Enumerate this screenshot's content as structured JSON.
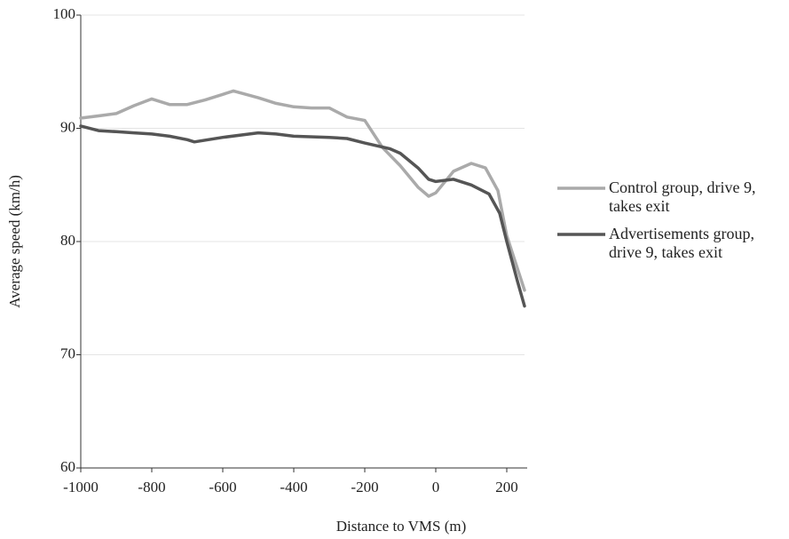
{
  "chart_data": {
    "type": "line",
    "x_label": "Distance to VMS (m)",
    "y_label": "Average speed (km/h)",
    "xlim": [
      -1000,
      250
    ],
    "xticks": [
      -1000,
      -800,
      -600,
      -400,
      -200,
      0,
      200
    ],
    "ylim": [
      60,
      100
    ],
    "yticks": [
      60,
      70,
      80,
      90,
      100
    ],
    "grid": true,
    "legend": "right",
    "series": [
      {
        "name": "Control group, drive 9, takes exit",
        "color": "#aaaaaa",
        "x": [
          -1000,
          -950,
          -900,
          -850,
          -800,
          -750,
          -700,
          -650,
          -600,
          -570,
          -500,
          -450,
          -400,
          -350,
          -300,
          -250,
          -200,
          -150,
          -100,
          -50,
          -20,
          0,
          50,
          100,
          140,
          175,
          200,
          250
        ],
        "values": [
          90.9,
          91.1,
          91.3,
          92.0,
          92.6,
          92.1,
          92.1,
          92.5,
          93.0,
          93.3,
          92.7,
          92.2,
          91.9,
          91.8,
          91.8,
          91.0,
          90.7,
          88.3,
          86.7,
          84.8,
          84.0,
          84.3,
          86.2,
          86.9,
          86.5,
          84.5,
          80.5,
          75.7
        ]
      },
      {
        "name": "Advertisements group, drive 9, takes exit",
        "color": "#555555",
        "x": [
          -1000,
          -950,
          -900,
          -850,
          -800,
          -750,
          -700,
          -680,
          -600,
          -500,
          -450,
          -400,
          -300,
          -250,
          -200,
          -130,
          -100,
          -50,
          -20,
          0,
          50,
          100,
          150,
          180,
          200,
          230,
          250
        ],
        "values": [
          90.2,
          89.8,
          89.7,
          89.6,
          89.5,
          89.3,
          89.0,
          88.8,
          89.2,
          89.6,
          89.5,
          89.3,
          89.2,
          89.1,
          88.7,
          88.2,
          87.8,
          86.5,
          85.5,
          85.3,
          85.5,
          85.0,
          84.2,
          82.5,
          80.0,
          76.5,
          74.3
        ]
      }
    ]
  }
}
